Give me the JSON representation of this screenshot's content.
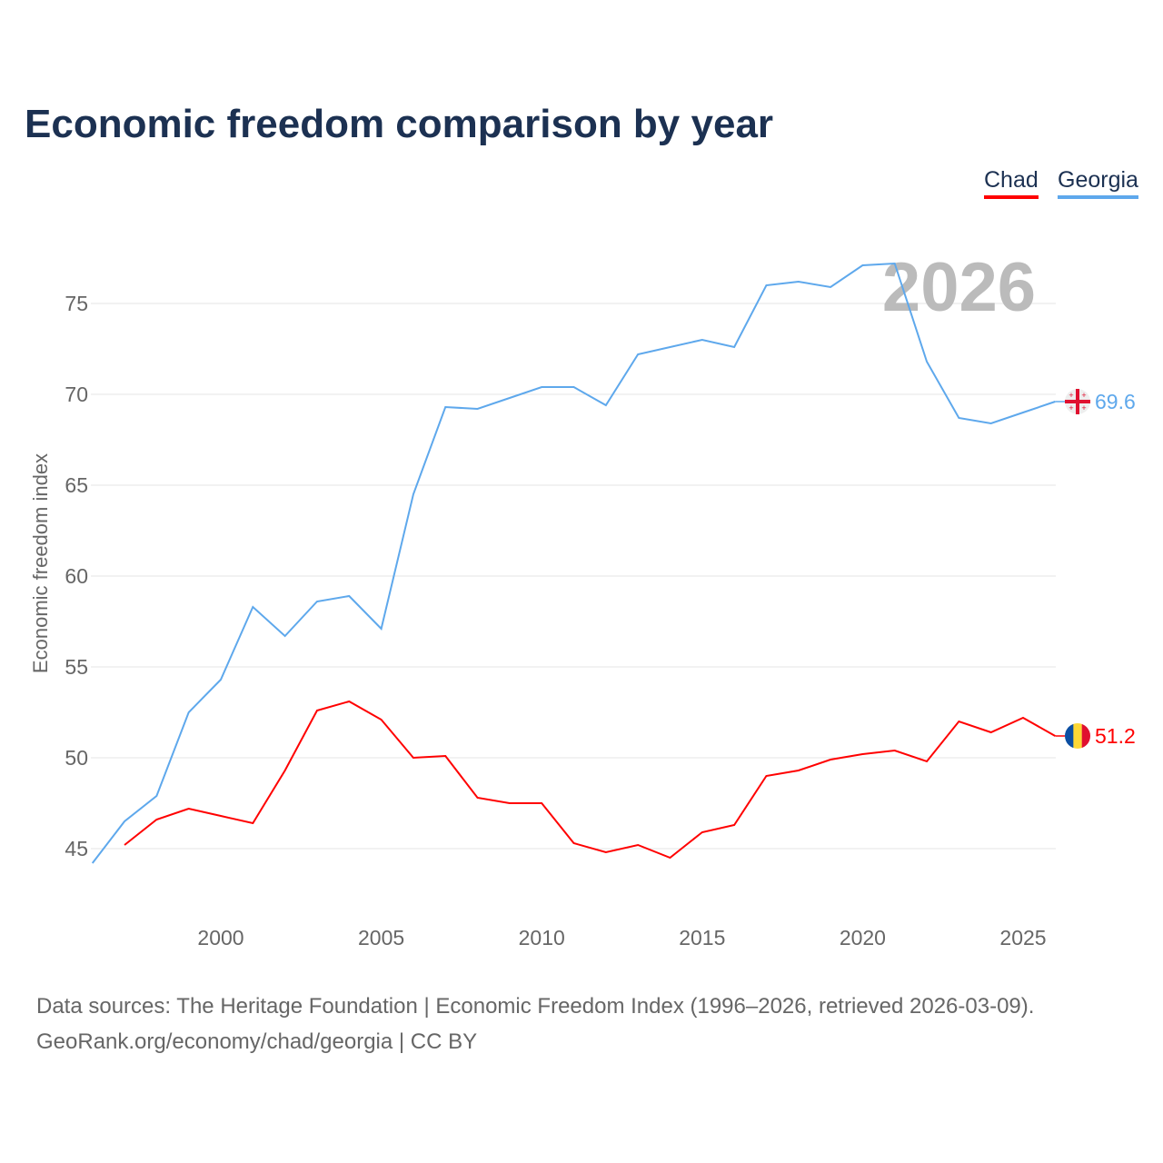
{
  "chart_data": {
    "type": "line",
    "title": "Economic freedom comparison by year",
    "xlabel": "",
    "ylabel": "Economic freedom index",
    "xlim": [
      1996,
      2026
    ],
    "ylim": [
      41.5,
      79
    ],
    "xticks": [
      2000,
      2005,
      2010,
      2015,
      2020,
      2025
    ],
    "yticks": [
      45,
      50,
      55,
      60,
      65,
      70,
      75
    ],
    "grid": true,
    "legend_position": "top-right",
    "year_watermark": "2026",
    "series": [
      {
        "name": "Chad",
        "color": "#ff0000",
        "end_label": "51.2",
        "x": [
          1997,
          1998,
          1999,
          2000,
          2001,
          2002,
          2003,
          2004,
          2005,
          2006,
          2007,
          2008,
          2009,
          2010,
          2011,
          2012,
          2013,
          2014,
          2015,
          2016,
          2017,
          2018,
          2019,
          2020,
          2021,
          2022,
          2023,
          2024,
          2025,
          2026
        ],
        "values": [
          45.2,
          46.6,
          47.2,
          46.8,
          46.4,
          49.3,
          52.6,
          53.1,
          52.1,
          50.0,
          50.1,
          47.8,
          47.5,
          47.5,
          45.3,
          44.8,
          45.2,
          44.5,
          45.9,
          46.3,
          49.0,
          49.3,
          49.9,
          50.2,
          50.4,
          49.8,
          52.0,
          51.4,
          52.2,
          51.2
        ]
      },
      {
        "name": "Georgia",
        "color": "#5ea8ec",
        "end_label": "69.6",
        "x": [
          1996,
          1997,
          1998,
          1999,
          2000,
          2001,
          2002,
          2003,
          2004,
          2005,
          2006,
          2007,
          2008,
          2009,
          2010,
          2011,
          2012,
          2013,
          2014,
          2015,
          2016,
          2017,
          2018,
          2019,
          2020,
          2021,
          2022,
          2023,
          2024,
          2025,
          2026
        ],
        "values": [
          44.2,
          46.5,
          47.9,
          52.5,
          54.3,
          58.3,
          56.7,
          58.6,
          58.9,
          57.1,
          64.5,
          69.3,
          69.2,
          69.8,
          70.4,
          70.4,
          69.4,
          72.2,
          72.6,
          73.0,
          72.6,
          76.0,
          76.2,
          75.9,
          77.1,
          77.2,
          71.8,
          68.7,
          68.4,
          69.0,
          69.6
        ]
      }
    ]
  },
  "footer": {
    "line1": "Data sources: The Heritage Foundation | Economic Freedom Index (1996–2026, retrieved 2026-03-09).",
    "line2": "GeoRank.org/economy/chad/georgia | CC BY"
  }
}
